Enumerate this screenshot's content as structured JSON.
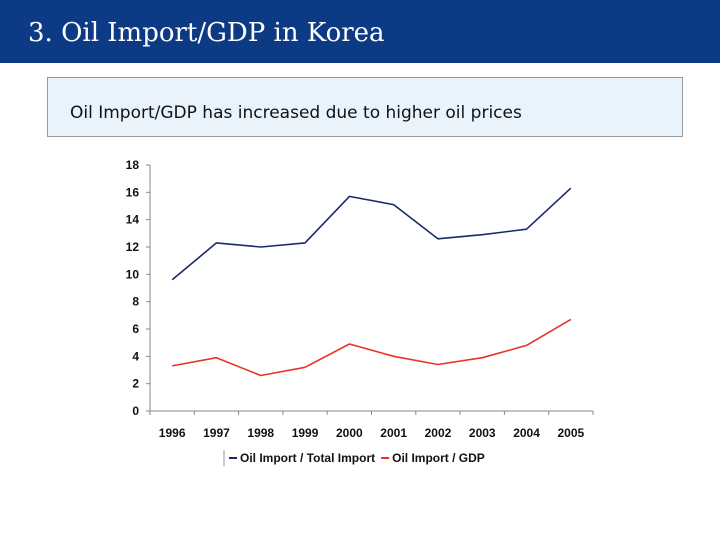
{
  "header": {
    "title": "3. Oil Import/GDP in Korea",
    "bar_color": "#0d3a85"
  },
  "subtitle": {
    "text": "Oil Import/GDP has increased due to higher oil prices",
    "background": "#e9f3fc"
  },
  "chart_data": {
    "type": "line",
    "categories": [
      "1996",
      "1997",
      "1998",
      "1999",
      "2000",
      "2001",
      "2002",
      "2003",
      "2004",
      "2005"
    ],
    "ylim": [
      0,
      18
    ],
    "yticks": [
      0,
      2,
      4,
      6,
      8,
      10,
      12,
      14,
      16,
      18
    ],
    "grid": false,
    "legend_placement": "bottom",
    "series": [
      {
        "name": "Oil Import / Total Import",
        "color": "#1a2a6c",
        "values": [
          9.6,
          12.3,
          12.0,
          12.3,
          15.7,
          15.1,
          12.6,
          12.9,
          13.3,
          16.3
        ]
      },
      {
        "name": "Oil Import / GDP",
        "color": "#e8322a",
        "values": [
          3.3,
          3.9,
          2.6,
          3.2,
          4.9,
          4.0,
          3.4,
          3.9,
          4.8,
          6.7
        ]
      }
    ]
  }
}
